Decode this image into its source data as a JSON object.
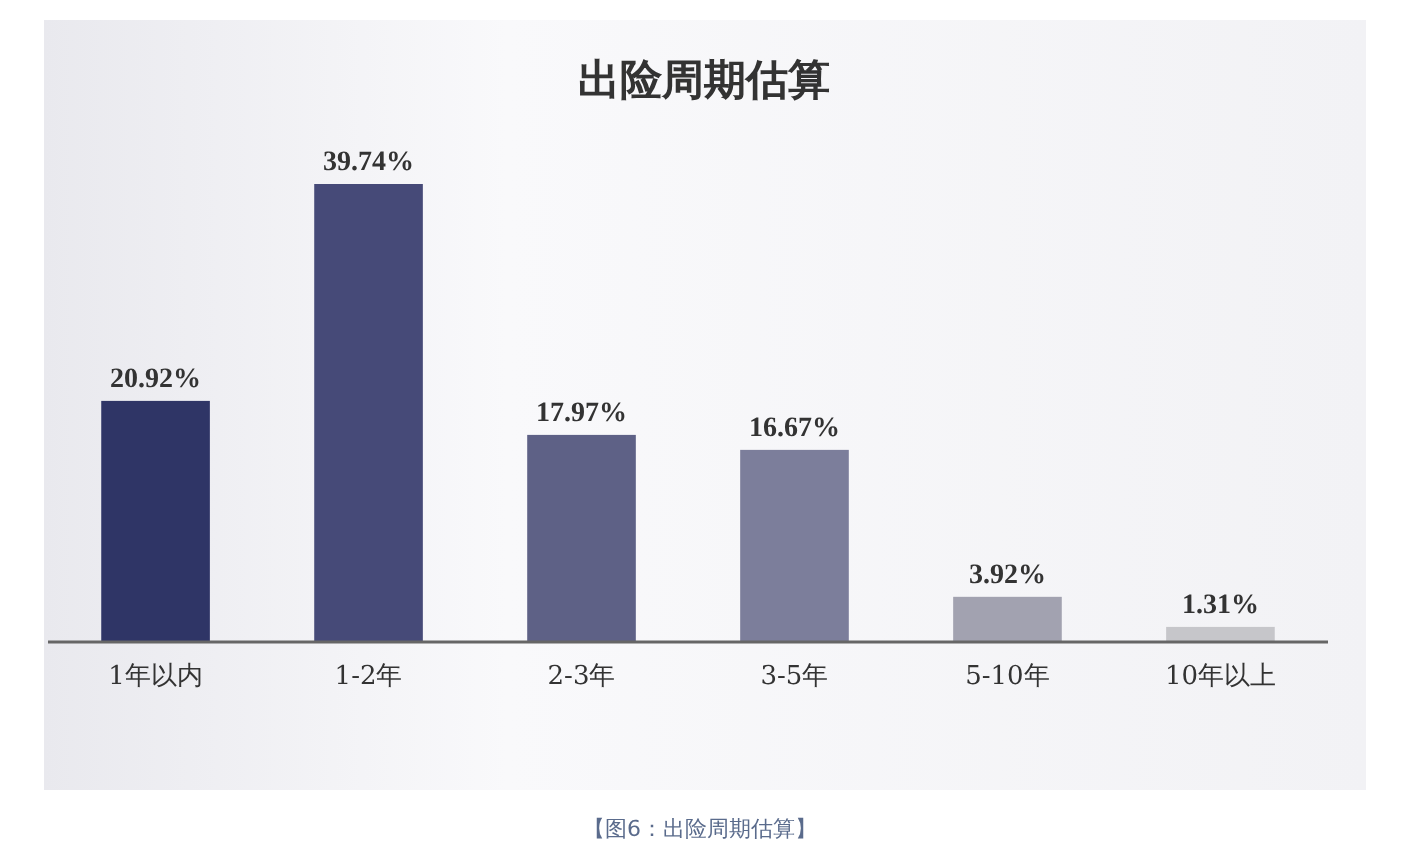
{
  "chart_data": {
    "type": "bar",
    "title": "出险周期估算",
    "categories": [
      "1年以内",
      "1-2年",
      "2-3年",
      "3-5年",
      "5-10年",
      "10年以上"
    ],
    "values": [
      20.92,
      39.74,
      17.97,
      16.67,
      3.92,
      1.31
    ],
    "colors": [
      "#2f3566",
      "#464a78",
      "#5e6186",
      "#7c7e9b",
      "#a2a2b0",
      "#c6c6ca"
    ],
    "value_labels": [
      "20.92%",
      "39.74%",
      "17.97%",
      "16.67%",
      "3.92%",
      "1.31%"
    ],
    "annotations": [
      "【图6：出险周期估算】"
    ]
  }
}
